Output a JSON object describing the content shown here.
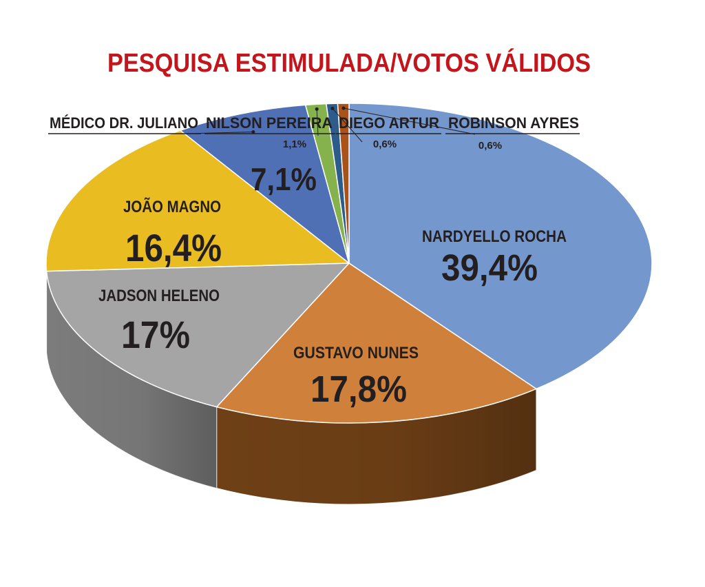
{
  "chart_data": {
    "type": "pie",
    "title": "PESQUISA ESTIMULADA/VOTOS VÁLIDOS",
    "slices": [
      {
        "label": "NARDYELLO ROCHA",
        "value": 39.4,
        "display": "39,4%",
        "color": "#7498CE",
        "side_color": "#22384F"
      },
      {
        "label": "GUSTAVO NUNES",
        "value": 17.8,
        "display": "17,8%",
        "color": "#CF813C",
        "side_color": "#6F4016"
      },
      {
        "label": "JADSON HELENO",
        "value": 17,
        "display": "17%",
        "color": "#A5A5A5",
        "side_color": "#7C7C7C"
      },
      {
        "label": "JOÃO MAGNO",
        "value": 16.4,
        "display": "16,4%",
        "color": "#E9BC22",
        "side_color": "#8A6C0A"
      },
      {
        "label": "MÉDICO DR. JULIANO",
        "value": 7.1,
        "display": "7,1%",
        "color": "#5070B6",
        "side_color": "#2A3E6B"
      },
      {
        "label": "NILSON PEREIRA",
        "value": 1.1,
        "display": "1,1%",
        "color": "#86B24E",
        "side_color": "#4D6A28"
      },
      {
        "label": "DIEGO ARTUR",
        "value": 0.6,
        "display": "0,6%",
        "color": "#2E5C8A",
        "side_color": "#1A3552"
      },
      {
        "label": "ROBINSON AYRES",
        "value": 0.6,
        "display": "0,6%",
        "color": "#A9531B",
        "side_color": "#5C2C0C"
      }
    ]
  },
  "colors": {
    "title": "#C3161C",
    "label_text": "#231F20",
    "slice_edge": "#FFFFFF"
  }
}
